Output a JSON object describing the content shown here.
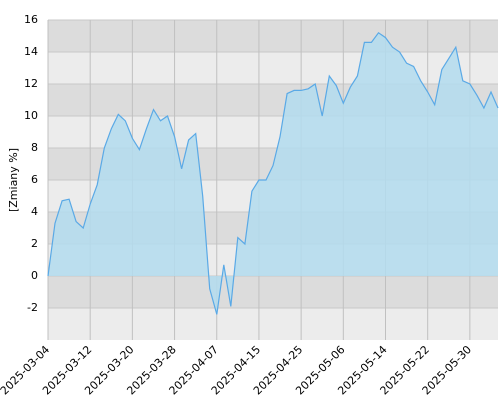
{
  "chart_data": {
    "type": "area",
    "y_label": "[Zmiany %]",
    "categories": [
      "2025-03-04",
      null,
      null,
      null,
      null,
      null,
      "2025-03-12",
      null,
      null,
      null,
      null,
      null,
      "2025-03-20",
      null,
      null,
      null,
      null,
      null,
      "2025-03-28",
      null,
      null,
      null,
      null,
      null,
      "2025-04-07",
      null,
      null,
      null,
      null,
      null,
      "2025-04-15",
      null,
      null,
      null,
      null,
      null,
      "2025-04-25",
      null,
      null,
      null,
      null,
      null,
      "2025-05-06",
      null,
      null,
      null,
      null,
      null,
      "2025-05-14",
      null,
      null,
      null,
      null,
      null,
      "2025-05-22",
      null,
      null,
      null,
      null,
      null,
      "2025-05-30",
      null,
      null,
      null,
      null
    ],
    "values": [
      0,
      3.3,
      4.7,
      4.8,
      3.4,
      3.0,
      4.5,
      5.7,
      8.0,
      9.2,
      10.1,
      9.7,
      8.6,
      7.9,
      9.2,
      10.4,
      9.7,
      10.0,
      8.7,
      6.7,
      8.5,
      8.9,
      5.0,
      -0.8,
      -2.4,
      0.7,
      -1.9,
      2.4,
      2.0,
      5.3,
      6.0,
      6.0,
      6.9,
      8.7,
      11.4,
      11.6,
      11.6,
      11.7,
      12.0,
      10.0,
      12.5,
      11.9,
      10.8,
      11.8,
      12.5,
      14.6,
      14.6,
      15.2,
      14.9,
      14.3,
      14.0,
      13.3,
      13.1,
      12.2,
      11.5,
      10.7,
      12.9,
      13.6,
      14.3,
      12.2,
      12.0,
      11.3,
      10.5,
      11.5,
      10.5
    ],
    "color": "#5aa9e6",
    "fill": "#b3dcee",
    "ylim": [
      -4,
      16
    ],
    "yticks": [
      -2,
      0,
      2,
      4,
      6,
      8,
      10,
      12,
      14,
      16
    ],
    "grid": true
  }
}
